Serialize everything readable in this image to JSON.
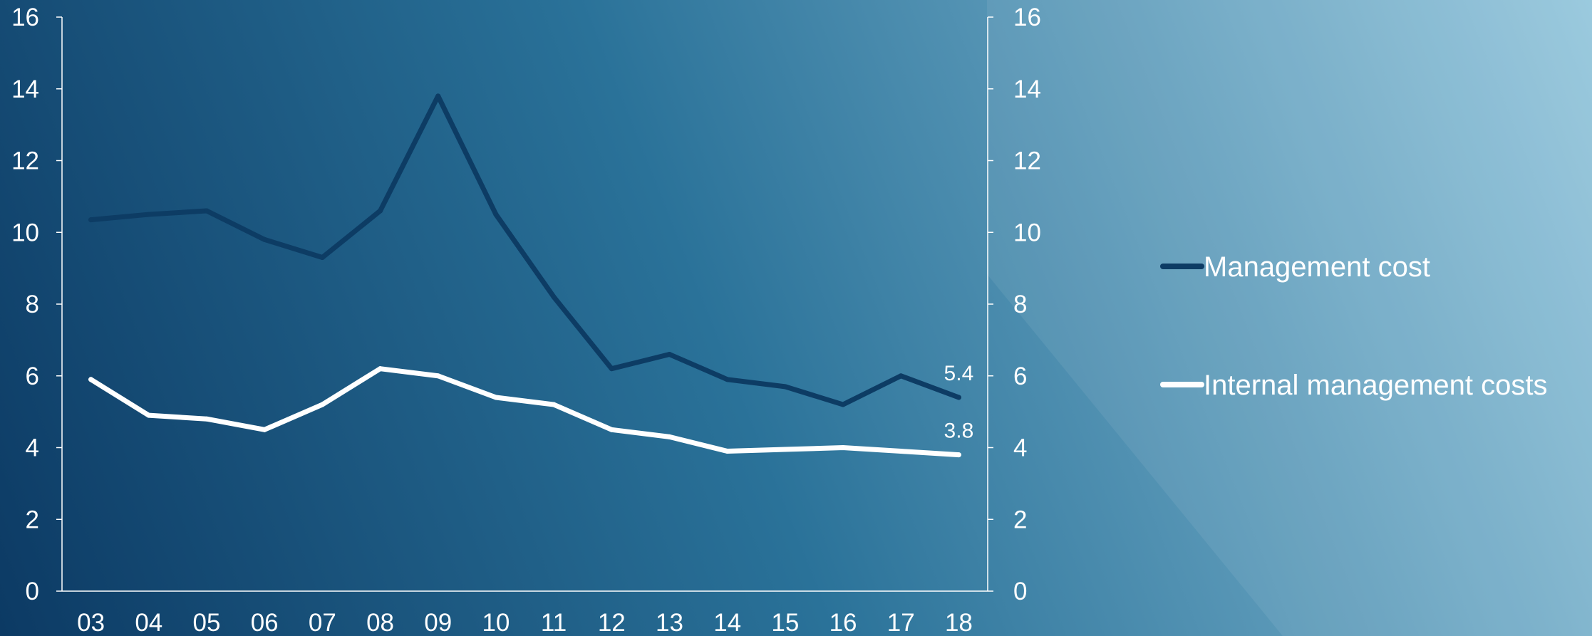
{
  "chart_data": {
    "type": "line",
    "categories": [
      "03",
      "04",
      "05",
      "06",
      "07",
      "08",
      "09",
      "10",
      "11",
      "12",
      "13",
      "14",
      "15",
      "16",
      "17",
      "18"
    ],
    "series": [
      {
        "name": "Management cost",
        "color": "#0d3c64",
        "values": [
          10.35,
          10.5,
          10.6,
          9.8,
          9.3,
          10.6,
          13.8,
          10.5,
          8.2,
          6.2,
          6.6,
          5.9,
          5.7,
          5.2,
          6.0,
          5.4
        ],
        "end_label": "5.4"
      },
      {
        "name": "Internal management costs",
        "color": "#ffffff",
        "values": [
          5.9,
          4.9,
          4.8,
          4.5,
          5.2,
          6.2,
          6.0,
          5.4,
          5.2,
          4.5,
          4.3,
          3.9,
          3.95,
          4.0,
          3.9,
          3.8
        ],
        "end_label": "3.8"
      }
    ],
    "ylim": [
      0,
      16
    ],
    "yticks": [
      "0",
      "2",
      "4",
      "6",
      "8",
      "10",
      "12",
      "14",
      "16"
    ],
    "y_axis_right": true,
    "grid": false,
    "legend_position": "right",
    "title": "",
    "xlabel": "",
    "ylabel": ""
  },
  "colors": {
    "background_dark": "#0c3a64",
    "background_mid": "#2a7299",
    "background_light": "#94c6dc",
    "axis": "#ffffff"
  }
}
